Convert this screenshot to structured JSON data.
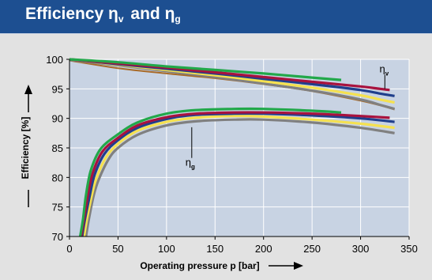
{
  "header": {
    "title_part1": "Efficiency ",
    "eta_v_symbol": "η",
    "eta_v_sub": "v",
    "conjunction": " and ",
    "eta_g_symbol": "η",
    "eta_g_sub": "g"
  },
  "colors": {
    "header_bg": "#1d4f91",
    "panel_bg": "#e2e2e2",
    "plot_bg": "#c8d3e3",
    "grid": "#ffffff",
    "green": "#22a84a",
    "crimson": "#a8123e",
    "navy": "#203f8c",
    "yellow": "#f5e150",
    "grey": "#808080",
    "brown": "#a86a28"
  },
  "chart_data": {
    "type": "line",
    "xlabel": "Operating pressure p [bar]",
    "ylabel": "Efficiency [%]",
    "xlim": [
      0,
      350
    ],
    "ylim": [
      70,
      100
    ],
    "x_ticks": [
      0,
      50,
      100,
      150,
      200,
      250,
      300,
      350
    ],
    "y_ticks": [
      70,
      75,
      80,
      85,
      90,
      95,
      100
    ],
    "grid": true,
    "legend": "none",
    "annotations": [
      {
        "symbol": "η",
        "sub": "v",
        "x": 326,
        "y": 97.8,
        "leader_x": 325,
        "leader_y": [
          97.4,
          95.0
        ]
      },
      {
        "symbol": "η",
        "sub": "g",
        "x": 126,
        "y": 82.0,
        "leader_x": 126,
        "leader_y": [
          83.3,
          88.5
        ]
      }
    ],
    "series": [
      {
        "group": "volumetric",
        "color": "#a86a28",
        "width": 2,
        "points": [
          [
            0,
            99.8
          ],
          [
            50,
            98.5
          ],
          [
            100,
            97.6
          ],
          [
            150,
            96.8
          ],
          [
            200,
            95.8
          ],
          [
            250,
            94.6
          ],
          [
            300,
            93.0
          ],
          [
            320,
            92.2
          ],
          [
            335,
            91.5
          ]
        ]
      },
      {
        "group": "volumetric",
        "color": "#808080",
        "width": 3.2,
        "points": [
          [
            0,
            99.9
          ],
          [
            50,
            99.0
          ],
          [
            100,
            98.0
          ],
          [
            150,
            97.0
          ],
          [
            200,
            95.9
          ],
          [
            250,
            94.7
          ],
          [
            300,
            93.2
          ],
          [
            320,
            92.3
          ],
          [
            335,
            91.6
          ]
        ]
      },
      {
        "group": "volumetric",
        "color": "#f5e150",
        "width": 3.2,
        "points": [
          [
            0,
            100
          ],
          [
            50,
            99.1
          ],
          [
            100,
            98.2
          ],
          [
            150,
            97.3
          ],
          [
            200,
            96.3
          ],
          [
            250,
            95.2
          ],
          [
            300,
            93.9
          ],
          [
            320,
            93.2
          ],
          [
            335,
            92.7
          ]
        ]
      },
      {
        "group": "volumetric",
        "color": "#203f8c",
        "width": 3.2,
        "points": [
          [
            0,
            100
          ],
          [
            50,
            99.2
          ],
          [
            100,
            98.4
          ],
          [
            150,
            97.6
          ],
          [
            200,
            96.7
          ],
          [
            250,
            95.8
          ],
          [
            300,
            94.8
          ],
          [
            320,
            94.2
          ],
          [
            335,
            93.8
          ]
        ]
      },
      {
        "group": "volumetric",
        "color": "#a8123e",
        "width": 3.2,
        "points": [
          [
            0,
            100
          ],
          [
            50,
            99.3
          ],
          [
            100,
            98.6
          ],
          [
            150,
            97.8
          ],
          [
            200,
            97.0
          ],
          [
            250,
            96.2
          ],
          [
            300,
            95.4
          ],
          [
            320,
            95.0
          ],
          [
            330,
            94.8
          ]
        ]
      },
      {
        "group": "volumetric",
        "color": "#22a84a",
        "width": 3.2,
        "points": [
          [
            0,
            100
          ],
          [
            50,
            99.5
          ],
          [
            100,
            98.8
          ],
          [
            150,
            98.2
          ],
          [
            200,
            97.6
          ],
          [
            250,
            96.9
          ],
          [
            280,
            96.5
          ]
        ]
      },
      {
        "group": "overall",
        "color": "#808080",
        "width": 3.2,
        "points": [
          [
            17,
            70
          ],
          [
            20,
            73
          ],
          [
            25,
            77
          ],
          [
            30,
            79.6
          ],
          [
            40,
            83.0
          ],
          [
            50,
            85.0
          ],
          [
            70,
            87.2
          ],
          [
            100,
            88.8
          ],
          [
            130,
            89.5
          ],
          [
            170,
            89.8
          ],
          [
            200,
            89.8
          ],
          [
            250,
            89.3
          ],
          [
            300,
            88.4
          ],
          [
            335,
            87.5
          ]
        ]
      },
      {
        "group": "overall",
        "color": "#f5e150",
        "width": 3.2,
        "points": [
          [
            15,
            70
          ],
          [
            18,
            73
          ],
          [
            23,
            77
          ],
          [
            28,
            80.0
          ],
          [
            38,
            83.5
          ],
          [
            50,
            85.7
          ],
          [
            70,
            87.9
          ],
          [
            100,
            89.4
          ],
          [
            130,
            90.1
          ],
          [
            170,
            90.4
          ],
          [
            200,
            90.3
          ],
          [
            250,
            89.8
          ],
          [
            300,
            89.1
          ],
          [
            335,
            88.4
          ]
        ]
      },
      {
        "group": "overall",
        "color": "#203f8c",
        "width": 3.2,
        "points": [
          [
            13,
            70
          ],
          [
            16,
            73
          ],
          [
            21,
            77
          ],
          [
            26,
            80.5
          ],
          [
            36,
            84.0
          ],
          [
            50,
            86.3
          ],
          [
            70,
            88.4
          ],
          [
            100,
            89.9
          ],
          [
            130,
            90.6
          ],
          [
            170,
            90.8
          ],
          [
            200,
            90.8
          ],
          [
            250,
            90.5
          ],
          [
            300,
            90.0
          ],
          [
            335,
            89.4
          ]
        ]
      },
      {
        "group": "overall",
        "color": "#a8123e",
        "width": 3.2,
        "points": [
          [
            12,
            70
          ],
          [
            15,
            73
          ],
          [
            19,
            77
          ],
          [
            24,
            80.8
          ],
          [
            34,
            84.4
          ],
          [
            50,
            86.7
          ],
          [
            70,
            88.8
          ],
          [
            100,
            90.2
          ],
          [
            130,
            90.8
          ],
          [
            170,
            91.0
          ],
          [
            200,
            91.0
          ],
          [
            250,
            90.8
          ],
          [
            300,
            90.4
          ],
          [
            330,
            90.1
          ]
        ]
      },
      {
        "group": "overall",
        "color": "#22a84a",
        "width": 3.2,
        "points": [
          [
            11,
            70
          ],
          [
            14,
            73
          ],
          [
            17,
            77
          ],
          [
            22,
            81.2
          ],
          [
            32,
            84.8
          ],
          [
            50,
            87.3
          ],
          [
            70,
            89.3
          ],
          [
            100,
            90.8
          ],
          [
            130,
            91.4
          ],
          [
            170,
            91.6
          ],
          [
            200,
            91.6
          ],
          [
            250,
            91.3
          ],
          [
            280,
            91.0
          ]
        ]
      }
    ]
  }
}
